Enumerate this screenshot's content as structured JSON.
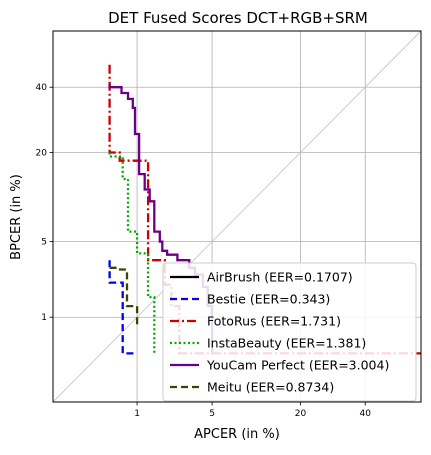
{
  "chart_data": {
    "type": "line",
    "title": "DET Fused Scores DCT+RGB+SRM",
    "xlabel": "APCER (in %)",
    "ylabel": "BPCER (in %)",
    "scale": "normal-deviate (probit)",
    "xlim": [
      0.1,
      60
    ],
    "ylim": [
      0.1,
      60
    ],
    "xticks": [
      1,
      5,
      20,
      40
    ],
    "yticks": [
      1,
      5,
      20,
      40
    ],
    "grid": true,
    "legend_position": "bottom-right",
    "reference_line": "diagonal EER line y = x",
    "series": [
      {
        "name": "AirBrush (EER=0.1707)",
        "color": "#000000",
        "style": "solid",
        "points": []
      },
      {
        "name": "Bestie (EER=0.343)",
        "color": "#0000ee",
        "style": "dashed",
        "points": [
          [
            0.5,
            3.5
          ],
          [
            0.5,
            2.2
          ],
          [
            0.7,
            2.2
          ],
          [
            0.7,
            0.4
          ],
          [
            1.0,
            0.4
          ]
        ]
      },
      {
        "name": "FotoRus (EER=1.731)",
        "color": "#cc0000",
        "style": "dashdot",
        "points": [
          [
            0.5,
            48
          ],
          [
            0.5,
            20
          ],
          [
            0.65,
            20
          ],
          [
            0.65,
            18
          ],
          [
            1.3,
            18
          ],
          [
            1.3,
            3.5
          ],
          [
            1.9,
            3.5
          ],
          [
            1.9,
            2.1
          ],
          [
            2.2,
            2.1
          ],
          [
            2.2,
            1.3
          ],
          [
            2.6,
            1.3
          ],
          [
            2.6,
            0.4
          ],
          [
            60,
            0.4
          ]
        ]
      },
      {
        "name": "InstaBeauty (EER=1.381)",
        "color": "#00aa00",
        "style": "dotted",
        "points": [
          [
            0.5,
            20
          ],
          [
            0.5,
            19
          ],
          [
            0.7,
            19
          ],
          [
            0.7,
            14
          ],
          [
            0.8,
            14
          ],
          [
            0.8,
            6
          ],
          [
            1.0,
            6
          ],
          [
            1.0,
            4
          ],
          [
            1.3,
            4
          ],
          [
            1.3,
            1.6
          ],
          [
            1.5,
            1.6
          ],
          [
            1.5,
            0.4
          ]
        ]
      },
      {
        "name": "YouCam Perfect (EER=3.004)",
        "color": "#6a0085",
        "style": "solid",
        "points": [
          [
            0.5,
            41
          ],
          [
            0.5,
            40
          ],
          [
            0.68,
            40
          ],
          [
            0.68,
            38
          ],
          [
            0.8,
            38
          ],
          [
            0.8,
            36
          ],
          [
            0.9,
            36
          ],
          [
            0.9,
            33
          ],
          [
            0.95,
            33
          ],
          [
            0.95,
            25
          ],
          [
            1.05,
            25
          ],
          [
            1.05,
            15
          ],
          [
            1.2,
            15
          ],
          [
            1.2,
            12
          ],
          [
            1.35,
            12
          ],
          [
            1.35,
            10
          ],
          [
            1.5,
            10
          ],
          [
            1.5,
            6
          ],
          [
            1.7,
            6
          ],
          [
            1.7,
            5
          ],
          [
            1.8,
            5
          ],
          [
            1.8,
            4.2
          ],
          [
            2.0,
            4.2
          ],
          [
            2.0,
            3.9
          ],
          [
            2.5,
            3.9
          ],
          [
            2.5,
            3.5
          ],
          [
            3.2,
            3.5
          ],
          [
            3.2,
            3.0
          ],
          [
            3.6,
            3.0
          ],
          [
            3.6,
            2.6
          ],
          [
            4.2,
            2.6
          ],
          [
            4.2,
            2.0
          ],
          [
            4.6,
            2.0
          ],
          [
            4.6,
            1.3
          ],
          [
            5.0,
            1.3
          ],
          [
            5.0,
            0.4
          ]
        ]
      },
      {
        "name": "Meitu (EER=0.8734)",
        "color": "#3a4500",
        "style": "dashed",
        "points": [
          [
            0.5,
            3.0
          ],
          [
            0.6,
            3.0
          ],
          [
            0.6,
            2.9
          ],
          [
            0.78,
            2.9
          ],
          [
            0.78,
            1.3
          ],
          [
            1.0,
            1.3
          ],
          [
            1.0,
            0.8
          ]
        ]
      }
    ]
  }
}
